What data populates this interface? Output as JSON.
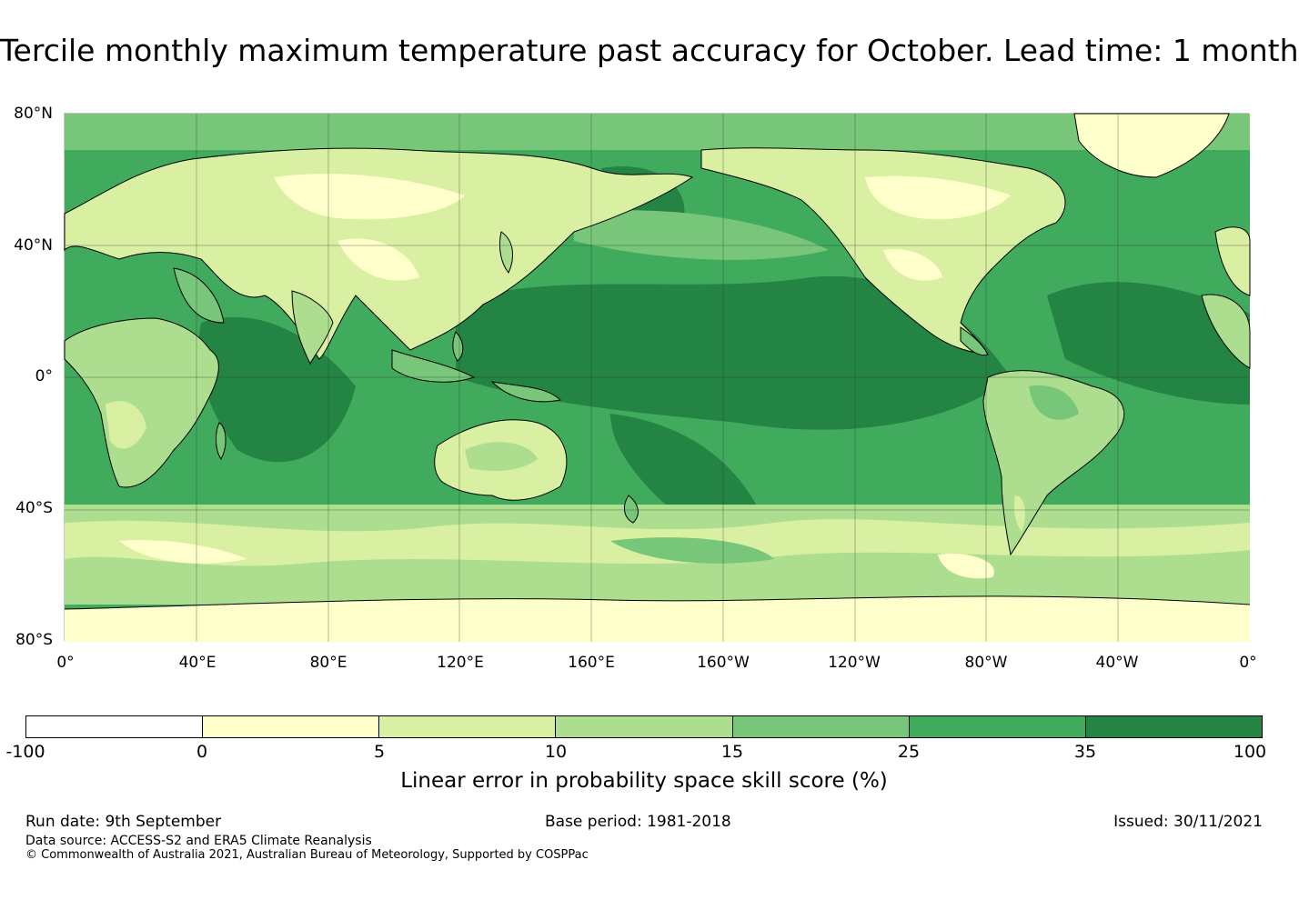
{
  "title": "Tercile monthly maximum temperature past accuracy for October. Lead time: 1 month",
  "map": {
    "lat_labels": [
      "80°N",
      "40°N",
      "0°",
      "40°S",
      "80°S"
    ],
    "lon_labels": [
      "0°",
      "40°E",
      "80°E",
      "120°E",
      "160°E",
      "160°W",
      "120°W",
      "80°W",
      "40°W",
      "0°"
    ],
    "projection": "equirectangular, central longitude 180°",
    "extent": {
      "lon": [
        0,
        360
      ],
      "lat": [
        -80,
        80
      ]
    },
    "gridlines": true,
    "coastlines": true
  },
  "colorbar": {
    "ticks": [
      "-100",
      "0",
      "5",
      "10",
      "15",
      "25",
      "35",
      "100"
    ],
    "colors": [
      "#ffffff",
      "#ffffcc",
      "#d9f0a3",
      "#addd8e",
      "#78c679",
      "#41ab5d",
      "#238443"
    ],
    "label": "Linear error in probability space skill score (%)"
  },
  "footer": {
    "run_date": "Run date: 9th September",
    "base_period": "Base period: 1981-2018",
    "issued": "Issued: 30/11/2021",
    "data_source": "Data source: ACCESS-S2 and ERA5 Climate Reanalysis",
    "copyright": "© Commonwealth of Australia 2021, Australian Bureau of Meteorology, Supported by COSPPac"
  }
}
